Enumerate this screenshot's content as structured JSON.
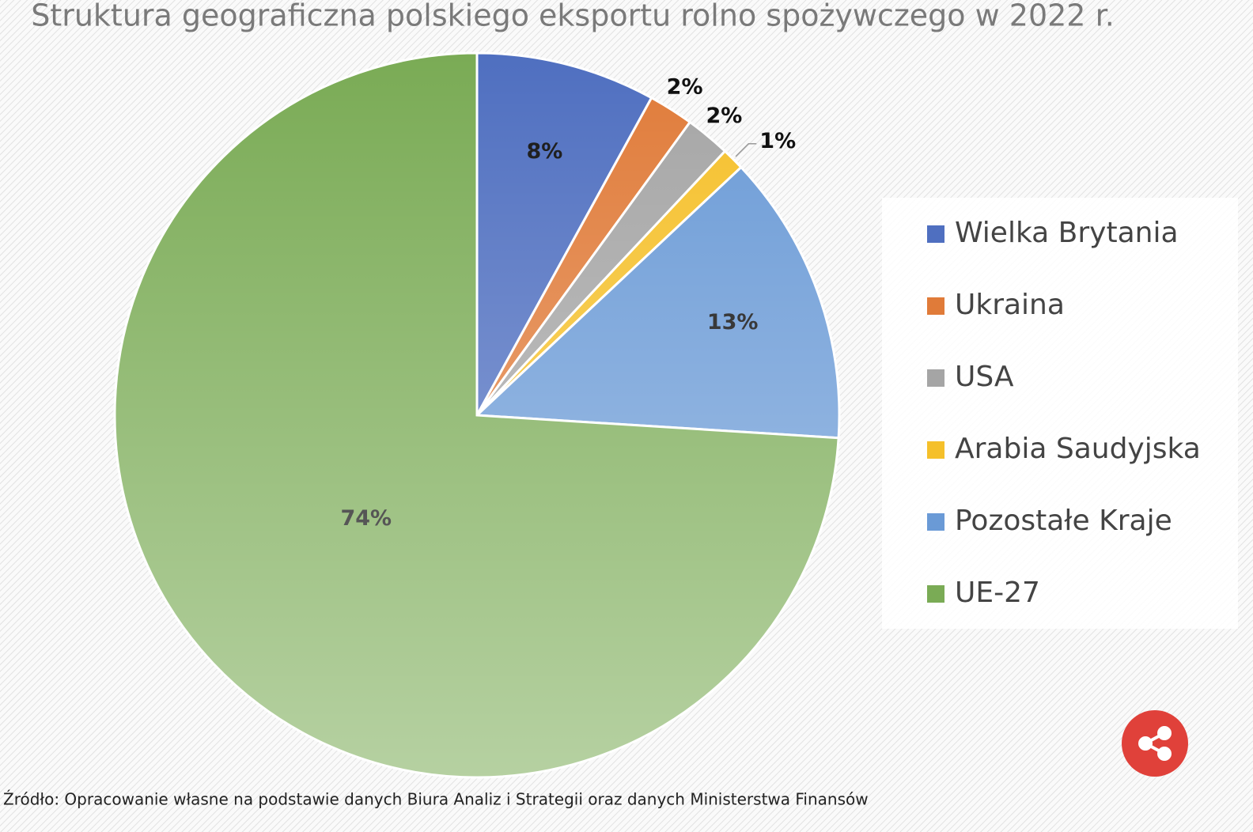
{
  "chart_data": {
    "type": "pie",
    "title": "Struktura geograficzna polskiego eksportu rolno spożywczego  w 2022 r.",
    "series": [
      {
        "name": "Wielka Brytania",
        "color": "#4f6fc0"
      },
      {
        "name": "Ukraina",
        "color": "#e07b39"
      },
      {
        "name": "USA",
        "color": "#a5a5a5"
      },
      {
        "name": "Arabia Saudyjska",
        "color": "#f5c02a"
      },
      {
        "name": "Pozostałe Kraje",
        "color": "#6a9ad6"
      },
      {
        "name": "UE-27",
        "color": "#7aab55"
      }
    ],
    "values": [
      8,
      2,
      2,
      1,
      13,
      74
    ],
    "value_labels": [
      "8%",
      "2%",
      "2%",
      "1%",
      "13%",
      "74%"
    ],
    "legend": "right",
    "source": "Źródło: Opracowanie własne na podstawie danych Biura Analiz i Strategii oraz danych Ministerstwa Finansów"
  }
}
